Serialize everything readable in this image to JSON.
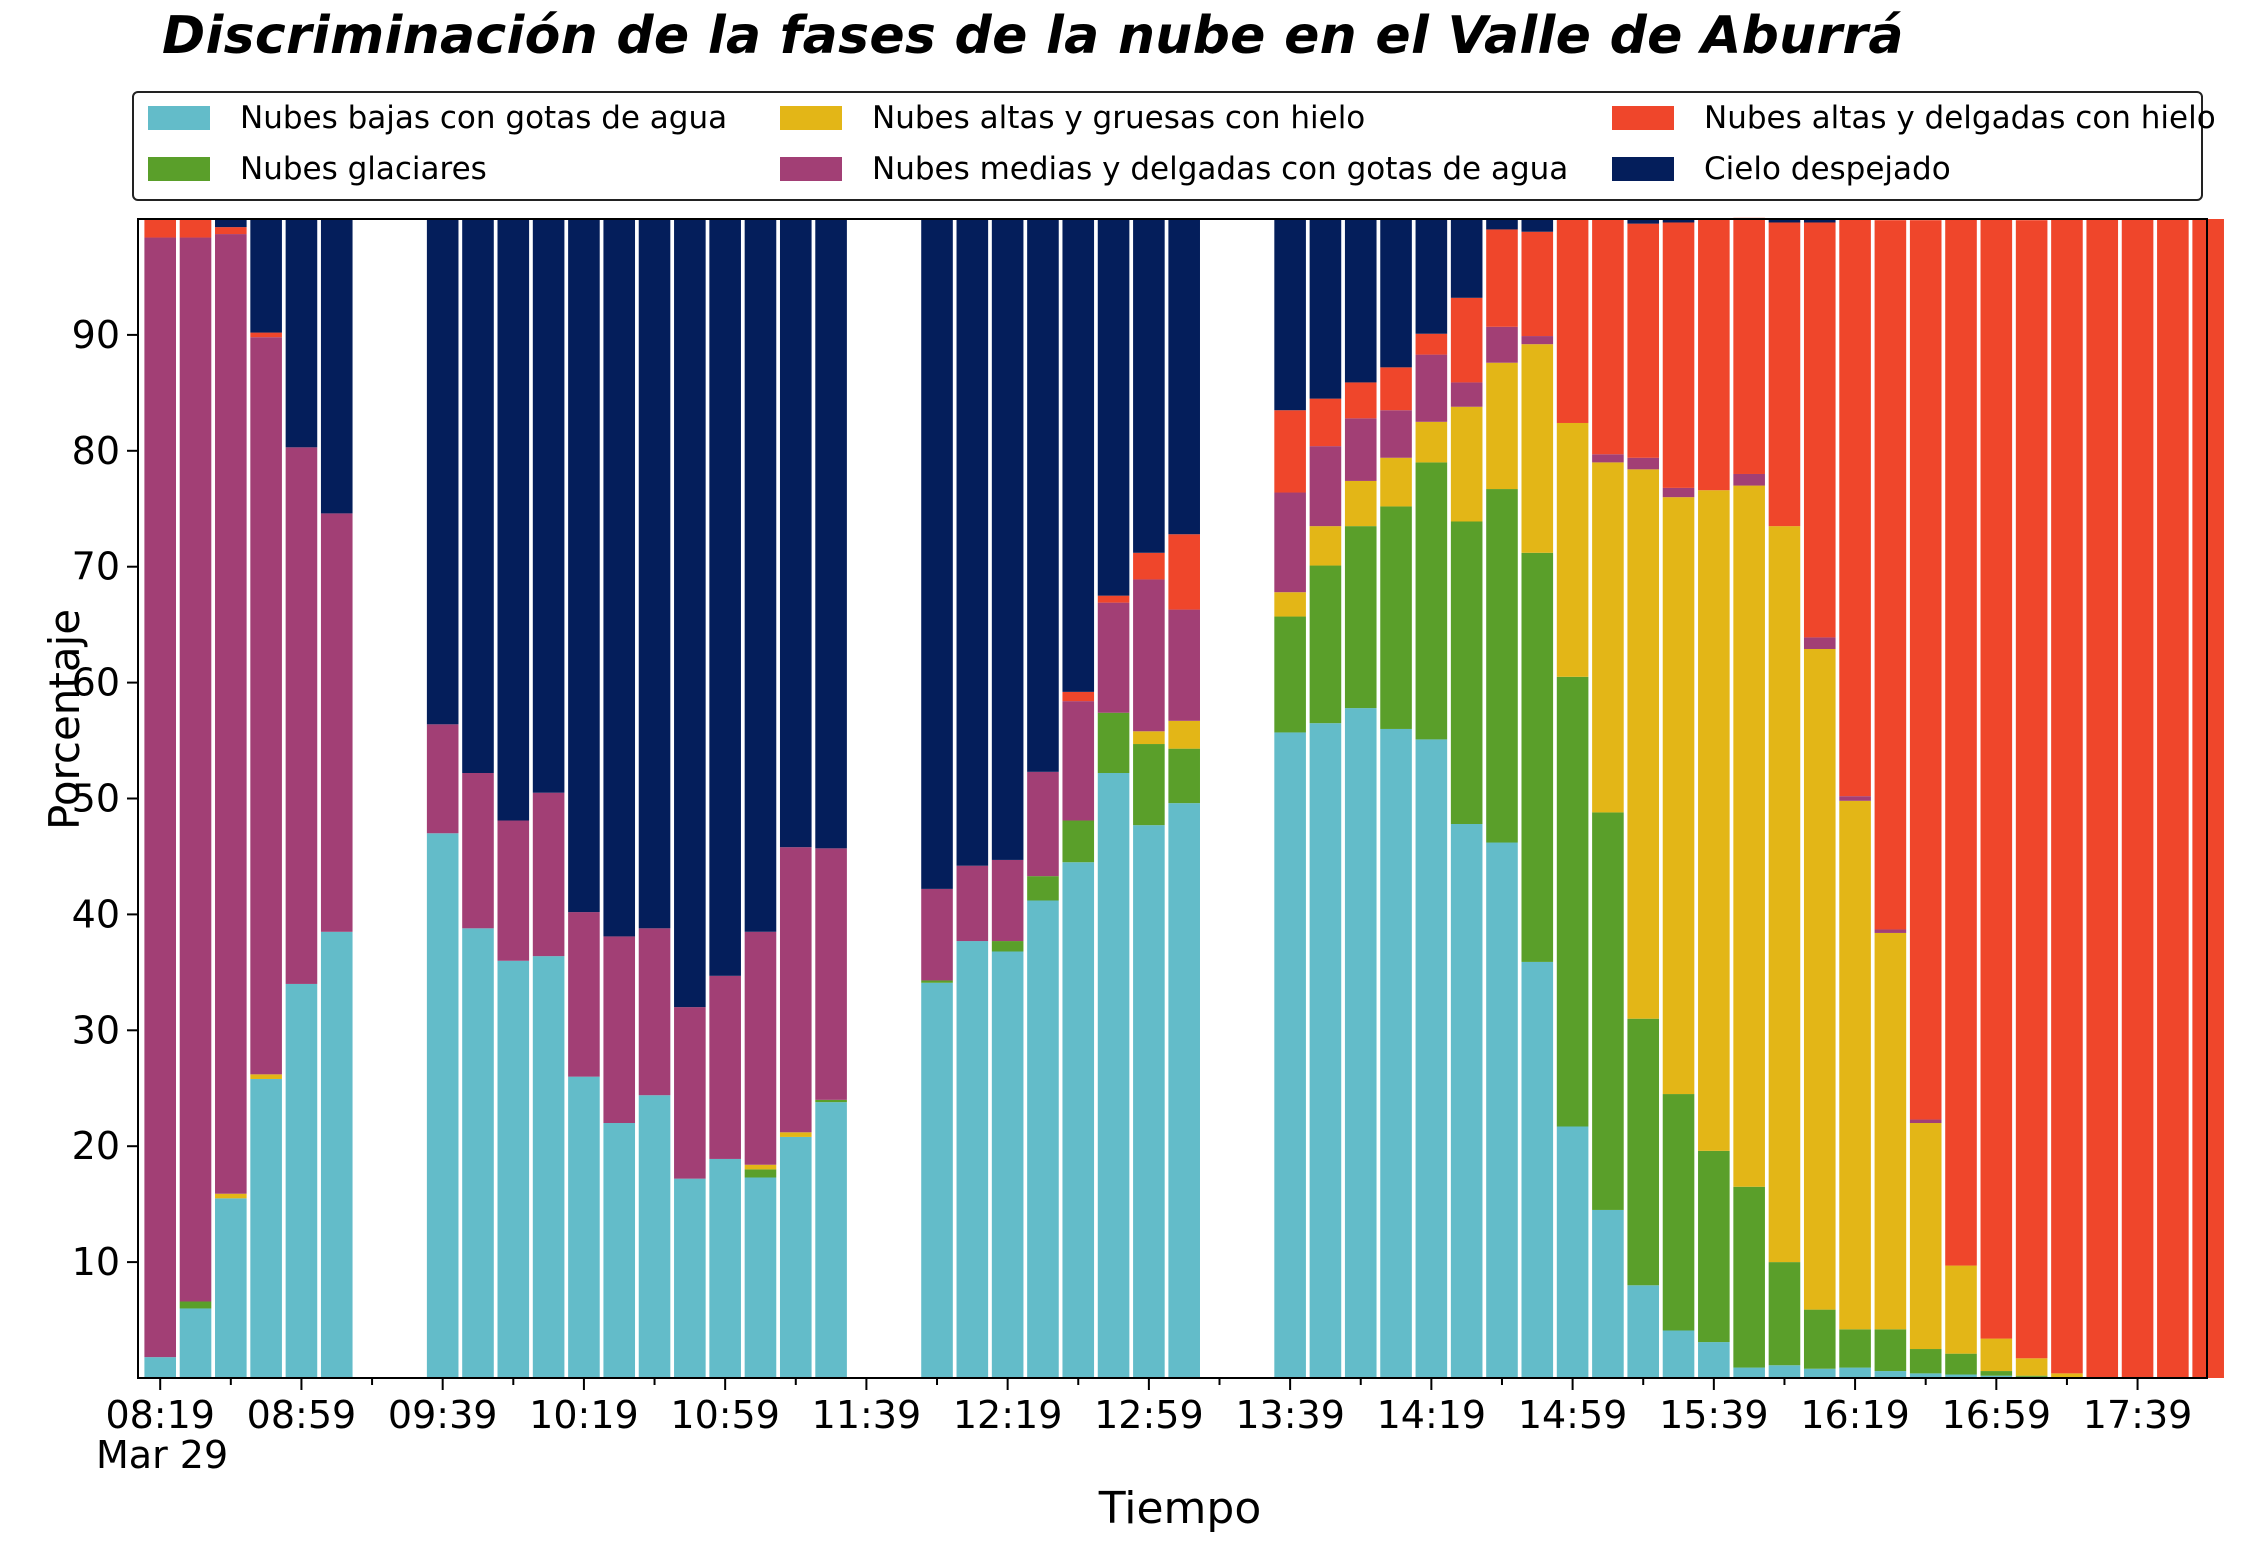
{
  "chart_data": {
    "type": "bar",
    "stacked": true,
    "title": "Discriminación de la fases de la nube en el Valle de Aburrá",
    "xlabel": "Tiempo",
    "ylabel": "Porcentaje",
    "date_label": "Mar 29",
    "ylim": [
      0,
      100
    ],
    "yticks": [
      10,
      20,
      30,
      40,
      50,
      60,
      70,
      80,
      90
    ],
    "xticks": [
      "08:19",
      "08:59",
      "09:39",
      "10:19",
      "10:59",
      "11:39",
      "12:19",
      "12:59",
      "13:39",
      "14:19",
      "14:59",
      "15:39",
      "16:19",
      "16:59",
      "17:39"
    ],
    "grid": false,
    "legend_position": "top",
    "series_colors": [
      "#63bcc9",
      "#5a9f2a",
      "#e3b617",
      "#a23f75",
      "#ef462b",
      "#041e5b"
    ],
    "series": [
      {
        "name": "Nubes bajas con gotas de agua",
        "values": [
          1.8,
          6,
          15.5,
          25.8,
          34,
          38.5,
          null,
          null,
          47,
          38.8,
          36,
          36.4,
          26,
          22,
          24.4,
          17.2,
          18.9,
          17.3,
          20.8,
          23.8,
          null,
          null,
          34.1,
          37.7,
          36.8,
          41.2,
          44.5,
          52.2,
          47.7,
          49.6,
          null,
          null,
          55.7,
          56.5,
          57.8,
          56,
          55.1,
          47.8,
          46.2,
          35.9,
          21.7,
          14.5,
          8,
          4.1,
          3.1,
          0.9,
          1.1,
          0.8,
          0.9,
          0.6,
          0.4,
          0.3,
          0.2,
          0.1,
          0,
          0,
          0,
          0,
          0
        ]
      },
      {
        "name": "Nubes glaciares",
        "values": [
          0,
          0.6,
          0,
          0,
          0,
          0,
          null,
          null,
          0,
          0,
          0,
          0,
          0,
          0,
          0,
          0,
          0,
          0.7,
          0,
          0.2,
          null,
          null,
          0.2,
          0,
          0.9,
          2.1,
          3.6,
          5.2,
          7,
          4.7,
          null,
          null,
          10,
          13.6,
          15.7,
          19.2,
          23.9,
          26.1,
          30.5,
          35.3,
          38.8,
          34.3,
          23,
          20.4,
          16.5,
          15.6,
          8.9,
          5.1,
          3.3,
          3.6,
          2.1,
          1.8,
          0.4,
          0.1,
          0,
          0,
          0,
          0,
          0
        ]
      },
      {
        "name": "Nubes altas y gruesas con hielo",
        "values": [
          0,
          0,
          0.4,
          0.4,
          0,
          0,
          null,
          null,
          0,
          0,
          0,
          0,
          0,
          0,
          0,
          0,
          0,
          0.4,
          0.4,
          0,
          null,
          null,
          0,
          0,
          0,
          0,
          0,
          0,
          1.1,
          2.4,
          null,
          null,
          2.1,
          3.4,
          3.9,
          4.2,
          3.5,
          9.9,
          10.9,
          18,
          21.9,
          30.2,
          47.4,
          51.5,
          57,
          60.5,
          63.5,
          57,
          45.6,
          34.2,
          19.5,
          7.6,
          2.8,
          1.5,
          0.4,
          0,
          0,
          0,
          0
        ]
      },
      {
        "name": "Nubes medias y delgadas con gotas de agua",
        "values": [
          96.6,
          91.8,
          82.8,
          63.6,
          46.3,
          36.1,
          null,
          null,
          9.4,
          13.4,
          12.1,
          14.1,
          14.2,
          16.1,
          14.4,
          14.8,
          15.8,
          20.1,
          24.6,
          21.7,
          null,
          null,
          7.9,
          6.5,
          7,
          9,
          10.3,
          9.5,
          13.1,
          9.6,
          null,
          null,
          8.6,
          6.9,
          5.4,
          4.1,
          5.8,
          2.1,
          3.1,
          0.7,
          0,
          0.7,
          1,
          0.8,
          0,
          1,
          0,
          1,
          0.4,
          0.3,
          0.3,
          0,
          0,
          0,
          0,
          0,
          0,
          0,
          0
        ]
      },
      {
        "name": "Nubes altas y delgadas con hielo",
        "values": [
          1.6,
          1.6,
          0.6,
          0.4,
          0,
          0,
          null,
          null,
          0,
          0,
          0,
          0,
          0,
          0,
          0,
          0,
          0,
          0,
          0,
          0,
          null,
          null,
          0,
          0,
          0,
          0,
          0.8,
          0.6,
          2.3,
          6.5,
          null,
          null,
          7.1,
          4.1,
          3.1,
          3.7,
          1.8,
          7.3,
          8.4,
          9,
          17.6,
          20.3,
          20.2,
          22.9,
          23.4,
          22.1,
          26.2,
          35.8,
          49.8,
          61.2,
          77.6,
          90.3,
          96.6,
          98.2,
          99.6,
          100,
          100,
          100,
          100
        ]
      },
      {
        "name": "Cielo despejado",
        "values": [
          0,
          0,
          0.7,
          9.8,
          19.7,
          25.4,
          null,
          null,
          43.6,
          47.8,
          51.9,
          49.5,
          59.8,
          61.9,
          61.2,
          68,
          65.3,
          61.5,
          54.2,
          54.3,
          null,
          null,
          57.8,
          55.8,
          55.3,
          47.7,
          40.8,
          32.5,
          28.8,
          27.2,
          null,
          null,
          16.5,
          15.5,
          14.1,
          12.8,
          9.9,
          6.8,
          0.9,
          1.1,
          0,
          0,
          0.4,
          0.3,
          0,
          0,
          0.3,
          0.3,
          0,
          0,
          0,
          0,
          0,
          0,
          0,
          0,
          0,
          0,
          0
        ]
      }
    ]
  }
}
